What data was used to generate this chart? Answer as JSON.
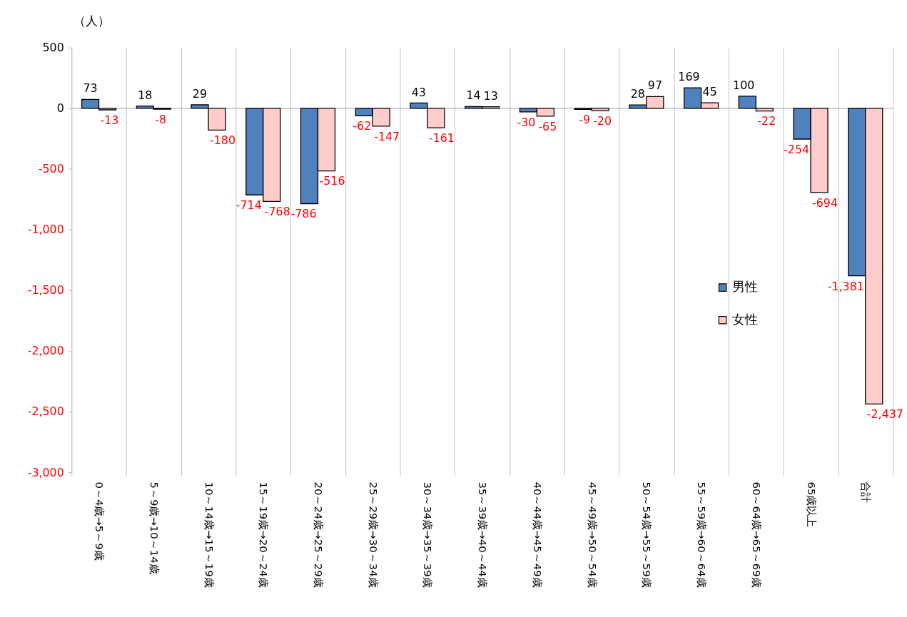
{
  "chart_data": {
    "type": "bar",
    "ylabel": "（人）",
    "categories": [
      "0～4歳→5～9歳",
      "5～9歳→10～14歳",
      "10～14歳→15～19歳",
      "15～19歳→20～24歳",
      "20～24歳→25～29歳",
      "25～29歳→30～34歳",
      "30～34歳→35～39歳",
      "35～39歳→40～44歳",
      "40～44歳→45～49歳",
      "45～49歳→50～54歳",
      "50～54歳→55～59歳",
      "55～59歳→60～64歳",
      "60～64歳→65～69歳",
      "65歳以上",
      "合計"
    ],
    "series": [
      {
        "name": "男性",
        "color": "#4f81bd",
        "values": [
          73,
          18,
          29,
          -714,
          -786,
          -62,
          43,
          14,
          -30,
          -9,
          28,
          169,
          100,
          -254,
          -1381
        ],
        "value_labels": [
          "73",
          "18",
          "29",
          "-714",
          "-786",
          "-62",
          "43",
          "14",
          "-30",
          "-9",
          "28",
          "169",
          "100",
          "-254",
          "-1,381"
        ]
      },
      {
        "name": "女性",
        "color": "#ffcccc",
        "values": [
          -13,
          -8,
          -180,
          -768,
          -516,
          -147,
          -161,
          13,
          -65,
          -20,
          97,
          45,
          -22,
          -694,
          -2437
        ],
        "value_labels": [
          "-13",
          "-8",
          "-180",
          "-768",
          "-516",
          "-147",
          "-161",
          "13",
          "-65",
          "-20",
          "97",
          "45",
          "-22",
          "-694",
          "-2,437"
        ]
      }
    ],
    "ylim": [
      -3000,
      500
    ],
    "yticks": [
      500,
      0,
      {
        "value": -500,
        "label": "-500"
      },
      {
        "value": -1000,
        "label": "-1,000"
      },
      {
        "value": -1500,
        "label": "-1,500"
      },
      {
        "value": -2000,
        "label": "-2,000"
      },
      {
        "value": -2500,
        "label": "-2,500"
      },
      {
        "value": -3000,
        "label": "-3,000"
      }
    ],
    "grid": "x",
    "legend": "right",
    "ref_lines": [
      {
        "axis": "y",
        "value": 0,
        "color": "#bfbfbf"
      }
    ]
  }
}
